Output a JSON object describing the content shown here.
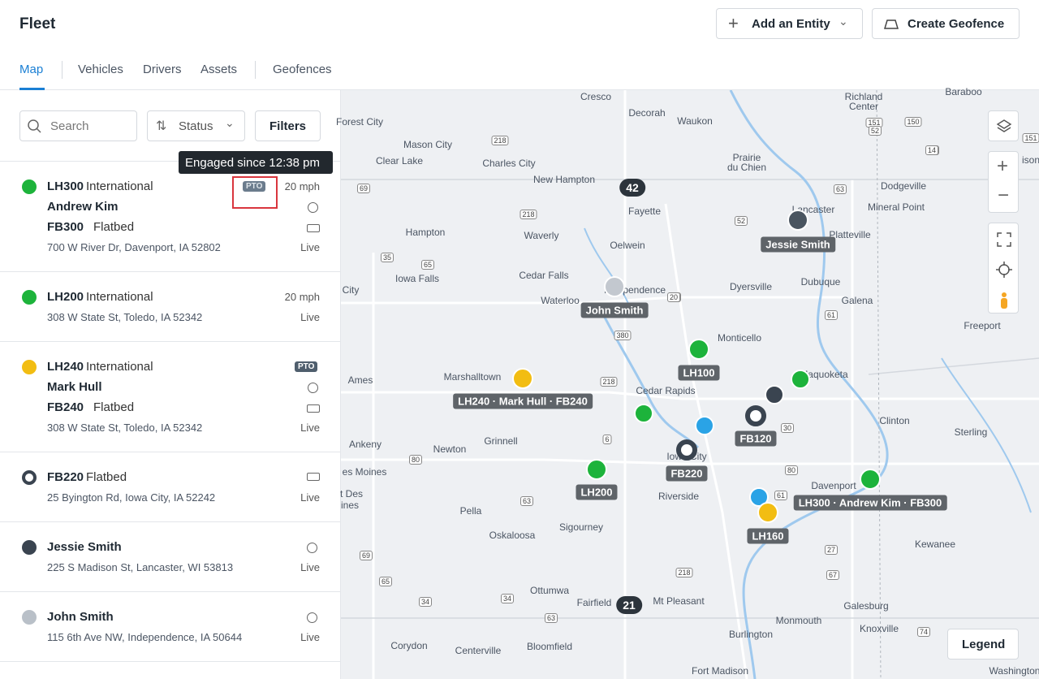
{
  "header": {
    "title": "Fleet",
    "add_button": "Add an Entity",
    "geofence_button": "Create Geofence"
  },
  "tabs": [
    "Map",
    "Vehicles",
    "Drivers",
    "Assets",
    "Geofences"
  ],
  "toolbar": {
    "search": "Search",
    "status": "Status",
    "filters": "Filters"
  },
  "tooltip": "Engaged since 12:38 pm",
  "list": [
    {
      "title": "LH300",
      "subtitle": "International",
      "badge": "PTO",
      "speed": "20 mph",
      "driver": "Andrew Kim",
      "trailer": "FB300",
      "trailer_type": "Flatbed",
      "address": "700 W River Dr, Davenport, IA 52802",
      "status": "Live",
      "icon_color": "#1db33b"
    },
    {
      "title": "LH200",
      "subtitle": "International",
      "speed": "20 mph",
      "address": "308 W State St, Toledo, IA 52342",
      "status": "Live",
      "icon_color": "#1db33b"
    },
    {
      "title": "LH240",
      "subtitle": "International",
      "badge": "PTO",
      "driver": "Mark Hull",
      "trailer": "FB240",
      "trailer_type": "Flatbed",
      "address": "308 W State St, Toledo, IA 52342",
      "status": "Live",
      "icon_color": "#f2bd12"
    },
    {
      "title": "FB220",
      "subtitle": "Flatbed",
      "address": "25 Byington Rd, Iowa City, IA 52242",
      "status": "Live",
      "icon_color": "#3a4450"
    },
    {
      "title": "Jessie Smith",
      "address": "225 S Madison St, Lancaster, WI 53813",
      "status": "Live",
      "icon_color": "#3a4450"
    },
    {
      "title": "John Smith",
      "address": "115 6th Ave NW, Independence, IA 50644",
      "status": "Live",
      "icon_color": "#b9c0c8"
    }
  ],
  "map": {
    "places": [
      "Cresco",
      "Decorah",
      "Waukon",
      "Richland",
      "Center",
      "Baraboo",
      "Forest City",
      "Mason City",
      "Clear Lake",
      "Charles City",
      "New Hampton",
      "Prairie",
      "du Chien",
      "Dodgeville",
      "Mineral Point",
      "Lancaster",
      "Platteville",
      "Fayette",
      "Hampton",
      "Waverly",
      "Oelwein",
      "Iowa Falls",
      "Cedar Falls",
      "Independence",
      "Dyersville",
      "Dubuque",
      "Galena",
      "Waterloo",
      "City",
      "Monticello",
      "Freeport",
      "Ames",
      "Marshalltown",
      "Maquoketa",
      "Cedar Rapids",
      "Clinton",
      "Sterling",
      "Ankeny",
      "Newton",
      "Grinnell",
      "Iowa City",
      "Davenport",
      "es Moines",
      "t Des",
      "ines",
      "Riverside",
      "Pella",
      "Sigourney",
      "Oskaloosa",
      "Kewanee",
      "Ottumwa",
      "Fairfield",
      "Mt Pleasant",
      "Galesburg",
      "Monmouth",
      "Knoxville",
      "Burlington",
      "Corydon",
      "Centerville",
      "Bloomfield",
      "Fort Madison",
      "Washington",
      "ison"
    ],
    "roads": [
      "218",
      "63",
      "52",
      "18",
      "69",
      "35",
      "65",
      "20",
      "380",
      "61",
      "151",
      "14",
      "151",
      "30",
      "6",
      "80",
      "63",
      "34",
      "218",
      "27",
      "67",
      "74",
      "61",
      "34",
      "63",
      "65",
      "69",
      "218",
      "150",
      "52",
      "218",
      "80",
      "20"
    ],
    "clusters": [
      "42",
      "21"
    ],
    "markers": [
      "Jessie Smith",
      "John Smith",
      "LH100",
      "LH240 · Mark Hull · FB240",
      "FB120",
      "FB220",
      "LH200",
      "LH160",
      "LH300 · Andrew Kim · FB300"
    ],
    "legend": "Legend"
  }
}
